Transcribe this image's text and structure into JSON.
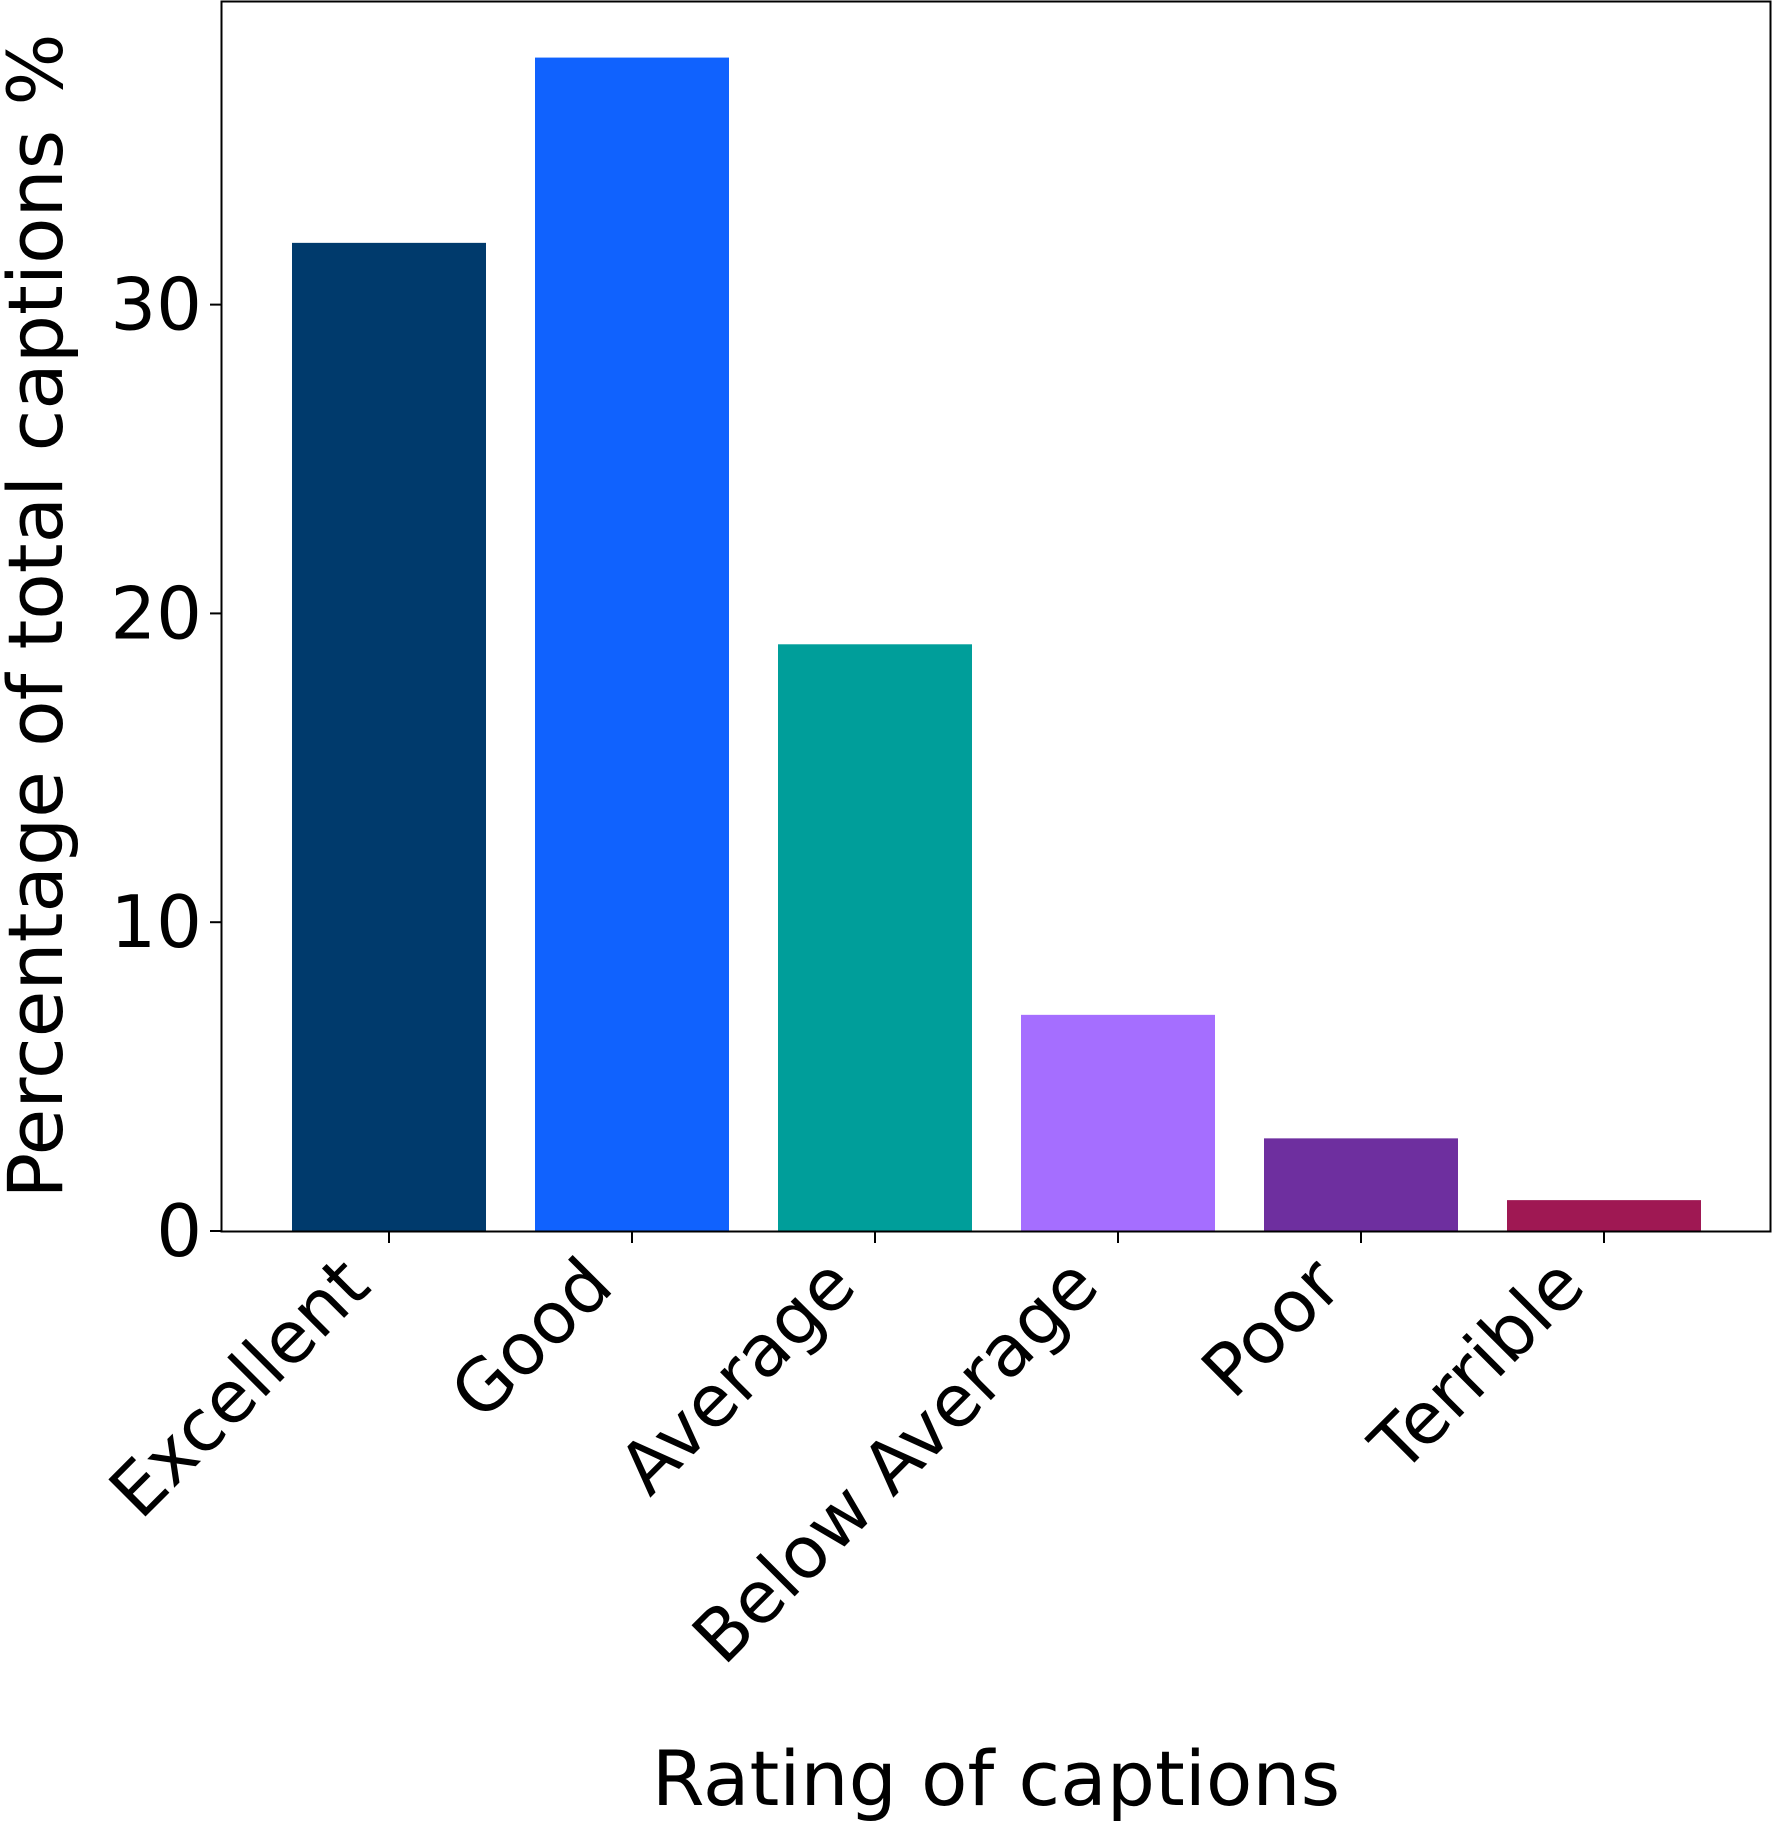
{
  "chart_data": {
    "type": "bar",
    "categories": [
      "Excellent",
      "Good",
      "Average",
      "Below Average",
      "Poor",
      "Terrible"
    ],
    "values": [
      32,
      38,
      19,
      7,
      3,
      1
    ],
    "colors": [
      "#003a6c",
      "#1062fe",
      "#009e9a",
      "#a56eff",
      "#6e2f9f",
      "#9f1853"
    ],
    "xlabel": "Rating of captions",
    "ylabel": "Percentage of total captions %",
    "ylim": [
      0,
      39.8
    ],
    "yticks": [
      0,
      10,
      20,
      30
    ],
    "grid": false,
    "legend": "none"
  }
}
